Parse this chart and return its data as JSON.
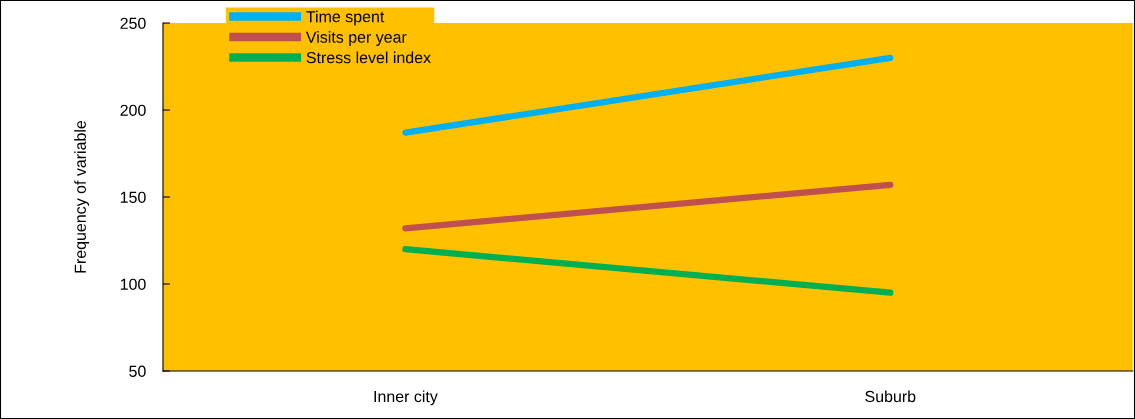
{
  "chart_data": {
    "type": "line",
    "ylabel": "Frequency of variable",
    "categories": [
      "Inner city",
      "Suburb"
    ],
    "series": [
      {
        "name": "Time spent",
        "color": "#00b0f0",
        "values": [
          187,
          230
        ]
      },
      {
        "name": "Visits per year",
        "color": "#c0504d",
        "values": [
          132,
          157
        ]
      },
      {
        "name": "Stress level index",
        "color": "#00b050",
        "values": [
          120,
          95
        ]
      }
    ],
    "ylim": [
      50,
      250
    ],
    "yticks": [
      50,
      100,
      150,
      200,
      250
    ],
    "grid": false,
    "legend": "top left",
    "marker": "none",
    "line_style": "solid"
  }
}
